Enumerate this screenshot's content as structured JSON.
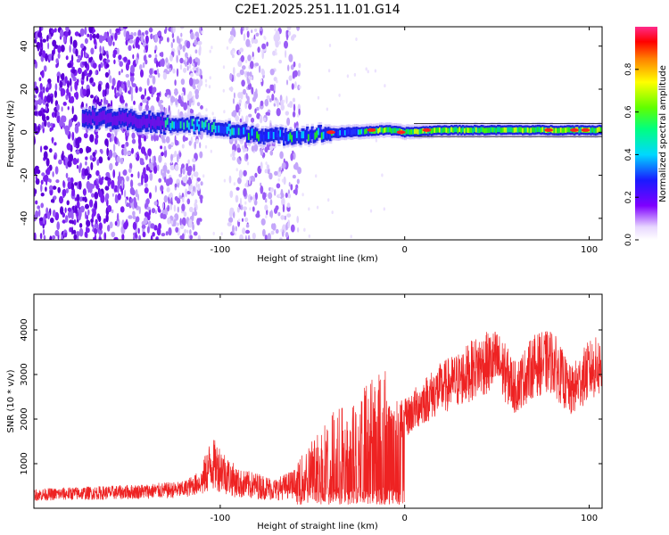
{
  "figure_title": "C2E1.2025.251.11.01.G14",
  "colors": {
    "signal_band": "#22ee22",
    "snr_line": "#ee2222",
    "frame": "#000000"
  },
  "chart_data": [
    {
      "type": "heatmap",
      "title": "C2E1.2025.251.11.01.G14",
      "xlabel": "Height of straight line (km)",
      "ylabel": "Frequency (Hz)",
      "xlim": [
        -201,
        107
      ],
      "ylim": [
        -50,
        49
      ],
      "x_ticks": [
        -100,
        0,
        100
      ],
      "y_ticks": [
        -40,
        -20,
        0,
        20,
        40
      ],
      "colorbar": {
        "label": "Normalized spectral amplitude",
        "range": [
          0,
          1
        ],
        "ticks": [
          0.0,
          0.2,
          0.4,
          0.6,
          0.8
        ],
        "tick_labels": [
          "0.0",
          "0.2",
          "0.4",
          "0.6",
          "0.8"
        ]
      },
      "signal_track": {
        "x": [
          -170,
          -130,
          -110,
          -90,
          -70,
          -50,
          -30,
          -10,
          0,
          20,
          50,
          80,
          107
        ],
        "frequency": [
          7,
          4,
          3,
          0,
          -2,
          -1,
          0,
          1,
          0,
          1,
          1,
          1,
          1
        ]
      },
      "noise_regions": [
        [
          -201,
          -110
        ],
        [
          -95,
          -57
        ]
      ]
    },
    {
      "type": "line",
      "xlabel": "Height of straight line (km)",
      "ylabel": "SNR (10 * v/v)",
      "xlim": [
        -201,
        107
      ],
      "ylim": [
        0,
        4800
      ],
      "x_ticks": [
        -100,
        0,
        100
      ],
      "y_ticks": [
        1000,
        2000,
        3000,
        4000
      ],
      "series": [
        {
          "name": "SNR",
          "x": [
            -201,
            -180,
            -160,
            -140,
            -120,
            -110,
            -105,
            -100,
            -95,
            -90,
            -80,
            -70,
            -60,
            -55,
            -45,
            -35,
            -30,
            -20,
            -10,
            0,
            10,
            20,
            30,
            40,
            50,
            60,
            70,
            80,
            90,
            100,
            107
          ],
          "y": [
            300,
            330,
            350,
            380,
            420,
            600,
            1000,
            900,
            700,
            550,
            500,
            420,
            550,
            800,
            1200,
            1500,
            1400,
            1900,
            2100,
            2000,
            2400,
            2700,
            2900,
            3200,
            3300,
            2700,
            3200,
            3300,
            2600,
            3100,
            3200
          ]
        }
      ]
    }
  ]
}
